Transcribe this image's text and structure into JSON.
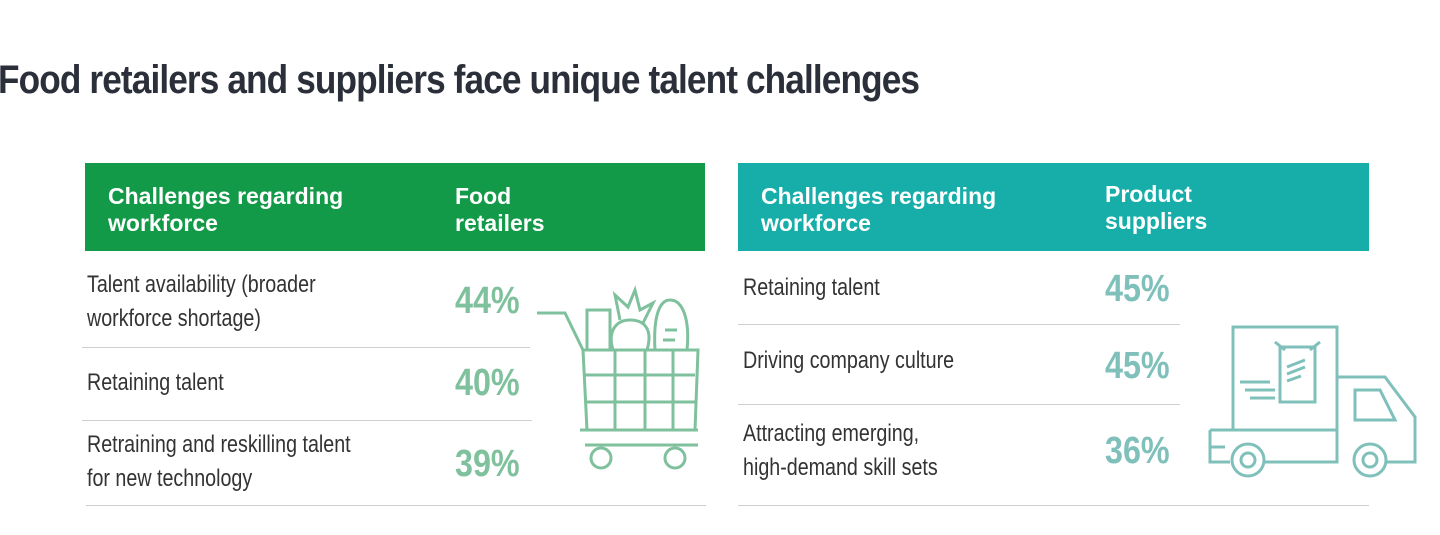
{
  "header": {
    "title": "Food retailers and suppliers face unique talent challenges"
  },
  "tables": [
    {
      "columns": [
        "Challenges regarding workforce",
        "Food retailers"
      ],
      "rows": [
        [
          "Talent availability (broader workforce shortage)",
          "44%"
        ],
        [
          "Retaining talent",
          "40%"
        ],
        [
          "Retraining and reskilling talent for new technology",
          "39%"
        ]
      ]
    },
    {
      "columns": [
        "Challenges regarding workforce",
        "Product suppliers"
      ],
      "rows": [
        [
          "Retaining talent",
          "45%"
        ],
        [
          "Driving company culture",
          "45%"
        ],
        [
          "Attracting emerging, high-demand skill sets",
          "36%"
        ]
      ]
    }
  ]
}
